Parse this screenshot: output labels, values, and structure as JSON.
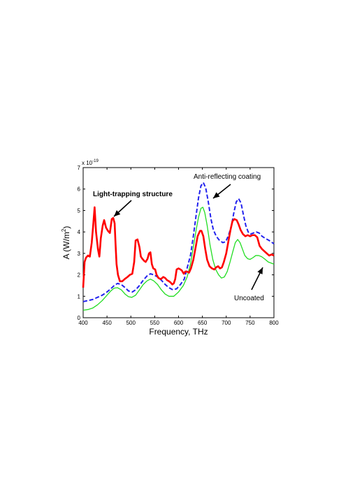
{
  "chart_data": {
    "type": "line",
    "title": "",
    "xlabel": "Frequency, THz",
    "ylabel": "A (W/m",
    "ylabel_sup": "2",
    "ylabel_close": ")",
    "y_multiplier_base": "x 10",
    "y_multiplier_exp": "-19",
    "xlim": [
      400,
      800
    ],
    "ylim": [
      0,
      7
    ],
    "x_ticks": [
      400,
      450,
      500,
      550,
      600,
      650,
      700,
      750,
      800
    ],
    "y_ticks": [
      0,
      1,
      2,
      3,
      4,
      5,
      6,
      7
    ],
    "grid": false,
    "legend": "none",
    "series": [
      {
        "color": "#ff0000",
        "style": "solid-thick",
        "points": [
          [
            400,
            1.4
          ],
          [
            403,
            2.6
          ],
          [
            406,
            2.8
          ],
          [
            410,
            2.9
          ],
          [
            414,
            2.85
          ],
          [
            418,
            3.5
          ],
          [
            421,
            4.3
          ],
          [
            424,
            5.15
          ],
          [
            427,
            4.0
          ],
          [
            431,
            3.2
          ],
          [
            434,
            2.85
          ],
          [
            437,
            3.7
          ],
          [
            441,
            4.3
          ],
          [
            444,
            4.55
          ],
          [
            448,
            4.2
          ],
          [
            452,
            4.05
          ],
          [
            456,
            3.95
          ],
          [
            460,
            4.6
          ],
          [
            463,
            4.65
          ],
          [
            466,
            4.4
          ],
          [
            468,
            3.4
          ],
          [
            470,
            2.5
          ],
          [
            473,
            2.0
          ],
          [
            477,
            1.7
          ],
          [
            482,
            1.7
          ],
          [
            487,
            1.8
          ],
          [
            493,
            1.9
          ],
          [
            498,
            2.0
          ],
          [
            503,
            2.05
          ],
          [
            507,
            2.6
          ],
          [
            510,
            3.6
          ],
          [
            514,
            3.65
          ],
          [
            518,
            3.3
          ],
          [
            521,
            2.85
          ],
          [
            524,
            2.75
          ],
          [
            528,
            2.65
          ],
          [
            531,
            2.6
          ],
          [
            535,
            2.75
          ],
          [
            538,
            3.0
          ],
          [
            541,
            3.05
          ],
          [
            544,
            2.5
          ],
          [
            547,
            2.3
          ],
          [
            551,
            2.25
          ],
          [
            554,
            2.0
          ],
          [
            558,
            1.85
          ],
          [
            563,
            1.8
          ],
          [
            568,
            1.9
          ],
          [
            572,
            1.85
          ],
          [
            576,
            1.75
          ],
          [
            580,
            1.7
          ],
          [
            583,
            1.65
          ],
          [
            587,
            1.55
          ],
          [
            590,
            1.6
          ],
          [
            593,
            1.8
          ],
          [
            596,
            2.25
          ],
          [
            600,
            2.3
          ],
          [
            604,
            2.25
          ],
          [
            607,
            2.2
          ],
          [
            611,
            2.05
          ],
          [
            614,
            2.15
          ],
          [
            618,
            2.15
          ],
          [
            622,
            2.1
          ],
          [
            626,
            2.3
          ],
          [
            631,
            2.7
          ],
          [
            636,
            3.3
          ],
          [
            640,
            3.8
          ],
          [
            645,
            4.05
          ],
          [
            648,
            4.05
          ],
          [
            652,
            3.8
          ],
          [
            656,
            3.2
          ],
          [
            660,
            2.7
          ],
          [
            665,
            2.4
          ],
          [
            670,
            2.3
          ],
          [
            675,
            2.25
          ],
          [
            679,
            2.35
          ],
          [
            683,
            2.4
          ],
          [
            687,
            2.3
          ],
          [
            691,
            2.35
          ],
          [
            695,
            2.6
          ],
          [
            700,
            3.0
          ],
          [
            704,
            3.5
          ],
          [
            709,
            4.1
          ],
          [
            713,
            4.5
          ],
          [
            717,
            4.6
          ],
          [
            722,
            4.55
          ],
          [
            726,
            4.35
          ],
          [
            730,
            4.1
          ],
          [
            735,
            3.9
          ],
          [
            740,
            3.8
          ],
          [
            745,
            3.85
          ],
          [
            750,
            3.8
          ],
          [
            755,
            3.85
          ],
          [
            760,
            3.85
          ],
          [
            765,
            3.75
          ],
          [
            770,
            3.35
          ],
          [
            775,
            3.2
          ],
          [
            780,
            3.1
          ],
          [
            785,
            3.0
          ],
          [
            790,
            2.9
          ],
          [
            795,
            2.95
          ],
          [
            800,
            2.9
          ]
        ]
      },
      {
        "color": "#2222ee",
        "style": "dashed",
        "points": [
          [
            400,
            0.75
          ],
          [
            410,
            0.8
          ],
          [
            420,
            0.85
          ],
          [
            430,
            0.95
          ],
          [
            440,
            1.05
          ],
          [
            450,
            1.2
          ],
          [
            458,
            1.35
          ],
          [
            465,
            1.5
          ],
          [
            472,
            1.6
          ],
          [
            480,
            1.55
          ],
          [
            488,
            1.4
          ],
          [
            495,
            1.25
          ],
          [
            503,
            1.2
          ],
          [
            510,
            1.3
          ],
          [
            518,
            1.5
          ],
          [
            526,
            1.75
          ],
          [
            534,
            1.95
          ],
          [
            541,
            2.05
          ],
          [
            548,
            2.0
          ],
          [
            556,
            1.9
          ],
          [
            564,
            1.75
          ],
          [
            572,
            1.55
          ],
          [
            580,
            1.4
          ],
          [
            588,
            1.3
          ],
          [
            596,
            1.35
          ],
          [
            604,
            1.55
          ],
          [
            612,
            1.8
          ],
          [
            619,
            2.4
          ],
          [
            625,
            2.9
          ],
          [
            631,
            3.8
          ],
          [
            637,
            4.8
          ],
          [
            642,
            5.6
          ],
          [
            647,
            6.15
          ],
          [
            652,
            6.3
          ],
          [
            657,
            6.05
          ],
          [
            662,
            5.45
          ],
          [
            668,
            4.6
          ],
          [
            673,
            4.1
          ],
          [
            679,
            3.8
          ],
          [
            686,
            3.6
          ],
          [
            693,
            3.5
          ],
          [
            699,
            3.55
          ],
          [
            705,
            3.85
          ],
          [
            711,
            4.3
          ],
          [
            716,
            4.9
          ],
          [
            721,
            5.4
          ],
          [
            726,
            5.55
          ],
          [
            731,
            5.35
          ],
          [
            736,
            4.8
          ],
          [
            741,
            4.3
          ],
          [
            746,
            4.0
          ],
          [
            751,
            3.9
          ],
          [
            757,
            3.95
          ],
          [
            763,
            4.0
          ],
          [
            769,
            3.95
          ],
          [
            775,
            3.8
          ],
          [
            782,
            3.7
          ],
          [
            790,
            3.6
          ],
          [
            800,
            3.45
          ]
        ]
      },
      {
        "color": "#22dd22",
        "style": "solid-thin",
        "points": [
          [
            400,
            0.35
          ],
          [
            410,
            0.38
          ],
          [
            420,
            0.45
          ],
          [
            430,
            0.6
          ],
          [
            440,
            0.8
          ],
          [
            450,
            1.05
          ],
          [
            458,
            1.25
          ],
          [
            465,
            1.38
          ],
          [
            472,
            1.4
          ],
          [
            480,
            1.3
          ],
          [
            488,
            1.1
          ],
          [
            495,
            0.98
          ],
          [
            502,
            0.95
          ],
          [
            510,
            1.05
          ],
          [
            518,
            1.3
          ],
          [
            526,
            1.55
          ],
          [
            534,
            1.72
          ],
          [
            541,
            1.8
          ],
          [
            548,
            1.72
          ],
          [
            556,
            1.55
          ],
          [
            564,
            1.3
          ],
          [
            572,
            1.1
          ],
          [
            580,
            1.0
          ],
          [
            590,
            1.0
          ],
          [
            600,
            1.2
          ],
          [
            610,
            1.5
          ],
          [
            618,
            1.9
          ],
          [
            625,
            2.5
          ],
          [
            631,
            3.3
          ],
          [
            637,
            4.1
          ],
          [
            642,
            4.7
          ],
          [
            647,
            5.1
          ],
          [
            651,
            5.15
          ],
          [
            655,
            4.9
          ],
          [
            660,
            4.3
          ],
          [
            666,
            3.4
          ],
          [
            672,
            2.7
          ],
          [
            678,
            2.25
          ],
          [
            684,
            2.0
          ],
          [
            690,
            1.85
          ],
          [
            696,
            1.9
          ],
          [
            702,
            2.15
          ],
          [
            708,
            2.6
          ],
          [
            714,
            3.1
          ],
          [
            719,
            3.5
          ],
          [
            724,
            3.65
          ],
          [
            729,
            3.5
          ],
          [
            734,
            3.2
          ],
          [
            739,
            2.9
          ],
          [
            745,
            2.75
          ],
          [
            750,
            2.72
          ],
          [
            756,
            2.8
          ],
          [
            762,
            2.9
          ],
          [
            768,
            2.9
          ],
          [
            774,
            2.85
          ],
          [
            780,
            2.75
          ],
          [
            788,
            2.6
          ],
          [
            800,
            2.5
          ]
        ]
      }
    ],
    "annotations": [
      {
        "text": "Light-trapping structure",
        "bold": true
      },
      {
        "text": "Anti-reflecting coating",
        "bold": false
      },
      {
        "text": "Uncoated",
        "bold": false
      }
    ]
  }
}
